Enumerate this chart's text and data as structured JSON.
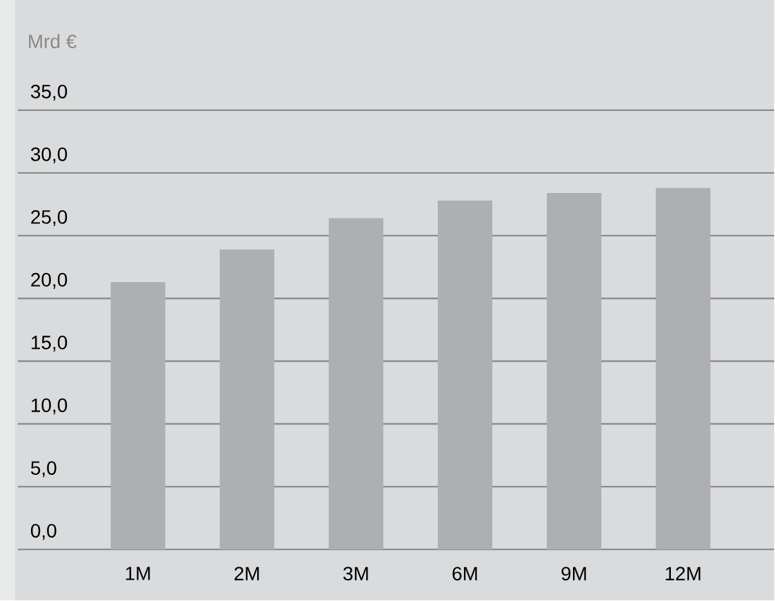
{
  "chart_data": {
    "type": "bar",
    "ylabel": "Mrd €",
    "categories": [
      "1M",
      "2M",
      "3M",
      "6M",
      "9M",
      "12M"
    ],
    "values": [
      21.3,
      23.9,
      26.4,
      27.8,
      28.4,
      28.8
    ],
    "color": "#aeafb1",
    "ylim": [
      0,
      35
    ],
    "yticks": [
      {
        "value": 0,
        "label": "0,0"
      },
      {
        "value": 5,
        "label": "5,0"
      },
      {
        "value": 10,
        "label": "10,0"
      },
      {
        "value": 15,
        "label": "15,0"
      },
      {
        "value": 20,
        "label": "20,0"
      },
      {
        "value": 25,
        "label": "25,0"
      },
      {
        "value": 30,
        "label": "30,0"
      },
      {
        "value": 35,
        "label": "35,0"
      }
    ],
    "grid": "y"
  }
}
